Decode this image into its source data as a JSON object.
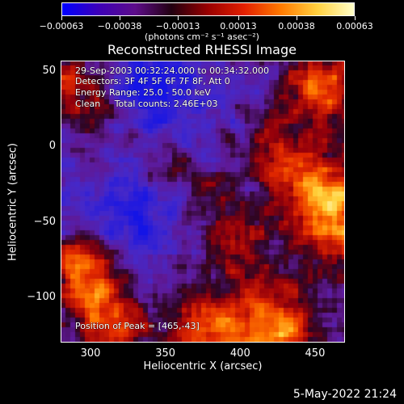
{
  "chart_data": {
    "type": "heatmap",
    "title": "Reconstructed RHESSI Image",
    "xlabel": "Heliocentric X (arcsec)",
    "ylabel": "Heliocentric Y (arcsec)",
    "xlim": [
      280,
      470
    ],
    "ylim": [
      -130,
      57
    ],
    "x_ticks": [
      "300",
      "350",
      "400",
      "450"
    ],
    "x_tick_values": [
      300,
      350,
      400,
      450
    ],
    "y_ticks": [
      "50",
      "0",
      "−50",
      "−100"
    ],
    "y_tick_values": [
      50,
      0,
      -50,
      -100
    ],
    "colorbar": {
      "ticks": [
        "−0.00063",
        "−0.00038",
        "−0.00013",
        "0.00013",
        "0.00038",
        "0.00063"
      ],
      "tick_values": [
        -0.00063,
        -0.00038,
        -0.00013,
        0.00013,
        0.00038,
        0.00063
      ],
      "unit_label": "(photons cm⁻² s⁻¹ asec⁻²)",
      "colors": [
        "#0000ff",
        "#3d00b8",
        "#5d0d8a",
        "#220010",
        "#9a0000",
        "#e32000",
        "#ff7a00",
        "#ffd040",
        "#ffffc8"
      ]
    },
    "annotations": {
      "time_range": "29-Sep-2003 00:32:24.000 to 00:34:32.000",
      "detectors": "Detectors: 3F 4F 5F 6F 7F 8F, Att 0",
      "energy": "Energy Range: 25.0 - 50.0 keV",
      "clean": "Clean     Total counts: 2.46E+03",
      "peak": "Position of Peak = [465,-43]"
    },
    "peak": [
      465,
      -43
    ],
    "emission_regions": [
      {
        "x": 465,
        "y": -43,
        "amp": 1.0,
        "sigma": 22
      },
      {
        "x": 455,
        "y": 40,
        "amp": 0.75,
        "sigma": 18
      },
      {
        "x": 430,
        "y": -10,
        "amp": 0.55,
        "sigma": 22
      },
      {
        "x": 420,
        "y": -120,
        "amp": 0.95,
        "sigma": 22
      },
      {
        "x": 375,
        "y": -120,
        "amp": 0.6,
        "sigma": 18
      },
      {
        "x": 395,
        "y": -60,
        "amp": 0.5,
        "sigma": 14
      },
      {
        "x": 300,
        "y": -100,
        "amp": 0.7,
        "sigma": 18
      },
      {
        "x": 290,
        "y": -75,
        "amp": 0.55,
        "sigma": 14
      },
      {
        "x": 320,
        "y": -125,
        "amp": 0.6,
        "sigma": 14
      },
      {
        "x": 285,
        "y": 45,
        "amp": 0.55,
        "sigma": 14
      },
      {
        "x": 305,
        "y": 20,
        "amp": 0.35,
        "sigma": 14
      },
      {
        "x": 350,
        "y": -15,
        "amp": 0.35,
        "sigma": 9
      },
      {
        "x": 375,
        "y": -25,
        "amp": 0.3,
        "sigma": 9
      },
      {
        "x": 345,
        "y": 40,
        "amp": -0.55,
        "sigma": 20
      },
      {
        "x": 330,
        "y": -45,
        "amp": -0.4,
        "sigma": 18
      }
    ]
  },
  "footer": {
    "timestamp": "5-May-2022 21:24"
  }
}
